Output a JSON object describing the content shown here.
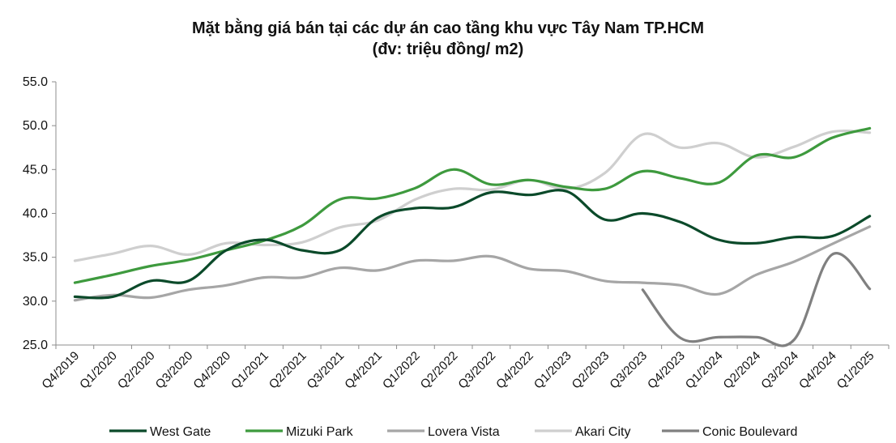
{
  "chart_data": {
    "type": "line",
    "title": "Mặt bằng giá bán tại các dự án cao tầng khu vực Tây Nam TP.HCM",
    "subtitle": "(đv: triệu đồng/ m2)",
    "ylim": [
      25,
      55
    ],
    "yticks": [
      "25.0",
      "30.0",
      "35.0",
      "40.0",
      "45.0",
      "50.0",
      "55.0"
    ],
    "grid": false,
    "legend_position": "bottom",
    "categories": [
      "Q4/2019",
      "Q1/2020",
      "Q2/2020",
      "Q3/2020",
      "Q4/2020",
      "Q1/2021",
      "Q2/2021",
      "Q3/2021",
      "Q4/2021",
      "Q1/2022",
      "Q2/2022",
      "Q3/2022",
      "Q4/2022",
      "Q1/2023",
      "Q2/2023",
      "Q3/2023",
      "Q4/2023",
      "Q1/2024",
      "Q2/2024",
      "Q3/2024",
      "Q4/2024",
      "Q1/2025"
    ],
    "series": [
      {
        "name": "West Gate",
        "color": "#0b4a2a",
        "values": [
          30.5,
          30.5,
          32.3,
          32.3,
          35.8,
          37.0,
          35.8,
          35.8,
          39.5,
          40.6,
          40.7,
          42.4,
          42.1,
          42.5,
          39.3,
          40.0,
          39.0,
          37.0,
          36.6,
          37.3,
          37.4,
          39.7
        ]
      },
      {
        "name": "Mizuki Park",
        "color": "#3e9a3e",
        "values": [
          32.1,
          33.0,
          34.0,
          34.7,
          35.8,
          36.9,
          38.6,
          41.6,
          41.7,
          42.9,
          45.0,
          43.3,
          43.8,
          43.0,
          42.8,
          44.8,
          44.0,
          43.5,
          46.6,
          46.4,
          48.6,
          49.7
        ]
      },
      {
        "name": "Lovera Vista",
        "color": "#a6a6a6",
        "values": [
          30.1,
          30.7,
          30.4,
          31.3,
          31.8,
          32.7,
          32.7,
          33.8,
          33.5,
          34.6,
          34.6,
          35.1,
          33.7,
          33.4,
          32.3,
          32.1,
          31.8,
          30.8,
          33.0,
          34.5,
          36.5,
          38.5
        ]
      },
      {
        "name": "Akari City",
        "color": "#cfcfcf",
        "values": [
          34.6,
          35.4,
          36.3,
          35.3,
          36.6,
          36.4,
          36.7,
          38.4,
          39.2,
          41.6,
          42.8,
          42.7,
          43.8,
          42.8,
          44.6,
          49.0,
          47.5,
          48.0,
          46.4,
          47.6,
          49.3,
          49.2
        ]
      },
      {
        "name": "Conic Boulevard",
        "color": "#808080",
        "values": [
          null,
          null,
          null,
          null,
          null,
          null,
          null,
          null,
          null,
          null,
          null,
          null,
          null,
          null,
          null,
          31.3,
          25.8,
          25.9,
          25.9,
          25.6,
          35.3,
          31.4
        ]
      }
    ]
  }
}
